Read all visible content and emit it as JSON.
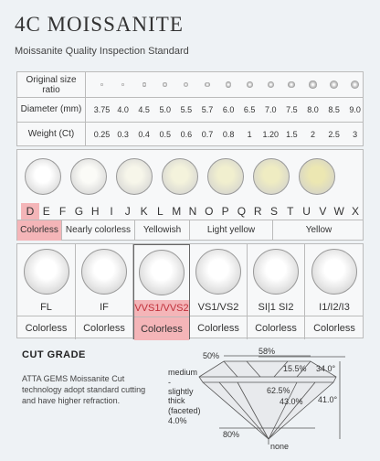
{
  "header": {
    "title": "4C MOISSANITE",
    "subtitle": "Moissanite Quality Inspection Standard"
  },
  "size_table": {
    "row_labels": {
      "ratio": "Original size ratio",
      "diameter": "Diameter (mm)",
      "weight": "Weight (Ct)"
    },
    "diameters": [
      "3.75",
      "4.0",
      "4.5",
      "5.0",
      "5.5",
      "5.7",
      "6.0",
      "6.5",
      "7.0",
      "7.5",
      "8.0",
      "8.5",
      "9.0"
    ],
    "weights": [
      "0.25",
      "0.3",
      "0.4",
      "0.5",
      "0.6",
      "0.7",
      "0.8",
      "1",
      "1.20",
      "1.5",
      "2",
      "2.5",
      "3"
    ]
  },
  "color_grade": {
    "letters": [
      "D",
      "E",
      "F",
      "G",
      "H",
      "I",
      "J",
      "K",
      "L",
      "M",
      "N",
      "O",
      "P",
      "Q",
      "R",
      "S",
      "T",
      "U",
      "V",
      "W",
      "X"
    ],
    "groups": [
      "Colorless",
      "Nearly colorless",
      "Yellowish",
      "Light yellow",
      "Yellow"
    ],
    "gem_tints": [
      "#ffffff",
      "#fbfbf7",
      "#f7f6ea",
      "#f4f3dc",
      "#f1efcf",
      "#efecc2",
      "#ece7b2"
    ],
    "highlight_color": "#f4b5b8"
  },
  "clarity": {
    "grades": [
      "FL",
      "IF",
      "VVS1/VVS2",
      "VS1/VS2",
      "SI|1 SI2",
      "I1/I2/I3"
    ],
    "groups": [
      "Colorless",
      "Colorless",
      "Colorless",
      "Colorless",
      "Colorless",
      "Colorless"
    ]
  },
  "cut_grade": {
    "title": "CUT GRADE",
    "description": "ATTA GEMS Moissanite Cut technology adopt standard cutting and have higher refraction.",
    "labels": {
      "table_left": "50%",
      "table_top": "58%",
      "crown_pct": "15.5%",
      "crown_angle": "34.0°",
      "girdle": "medium - slightly thick (faceted) 4.0%",
      "depth": "62.5%",
      "pavilion_pct": "43.0%",
      "pavilion_angle": "41.0°",
      "lower_half": "80%",
      "culet": "none"
    }
  }
}
